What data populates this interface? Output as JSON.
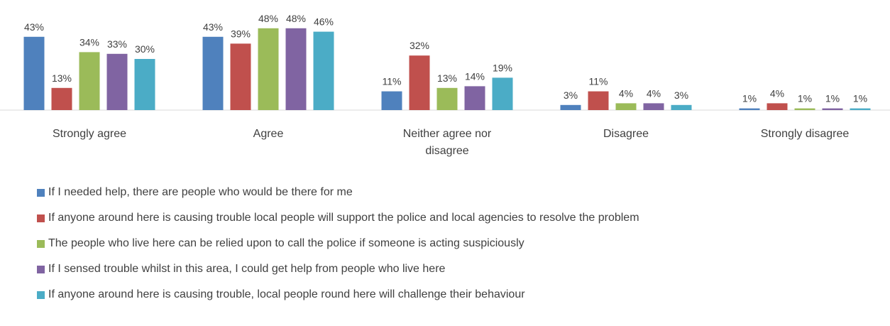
{
  "chart_data": {
    "type": "bar",
    "categories": [
      "Strongly agree",
      "Agree",
      "Neither agree nor disagree",
      "Disagree",
      "Strongly disagree"
    ],
    "series": [
      {
        "name": "If I needed help, there are people who would be there for me",
        "color": "#4f81bd",
        "values": [
          43,
          43,
          11,
          3,
          1
        ]
      },
      {
        "name": "If anyone around here is causing trouble local people will support the police and local agencies to resolve the problem",
        "color": "#c0504d",
        "values": [
          13,
          39,
          32,
          11,
          4
        ]
      },
      {
        "name": "The people who live here can be relied upon to call the police if someone is acting suspiciously",
        "color": "#9bbb59",
        "values": [
          34,
          48,
          13,
          4,
          1
        ]
      },
      {
        "name": "If I sensed trouble whilst in this area, I could get help from people who live here",
        "color": "#8064a2",
        "values": [
          33,
          48,
          14,
          4,
          1
        ]
      },
      {
        "name": "If anyone around here is causing trouble, local people round here will challenge their behaviour",
        "color": "#4bacc6",
        "values": [
          30,
          46,
          19,
          3,
          1
        ]
      }
    ],
    "value_suffix": "%",
    "ylim": [
      0,
      50
    ],
    "grid": false,
    "legend_position": "bottom"
  }
}
